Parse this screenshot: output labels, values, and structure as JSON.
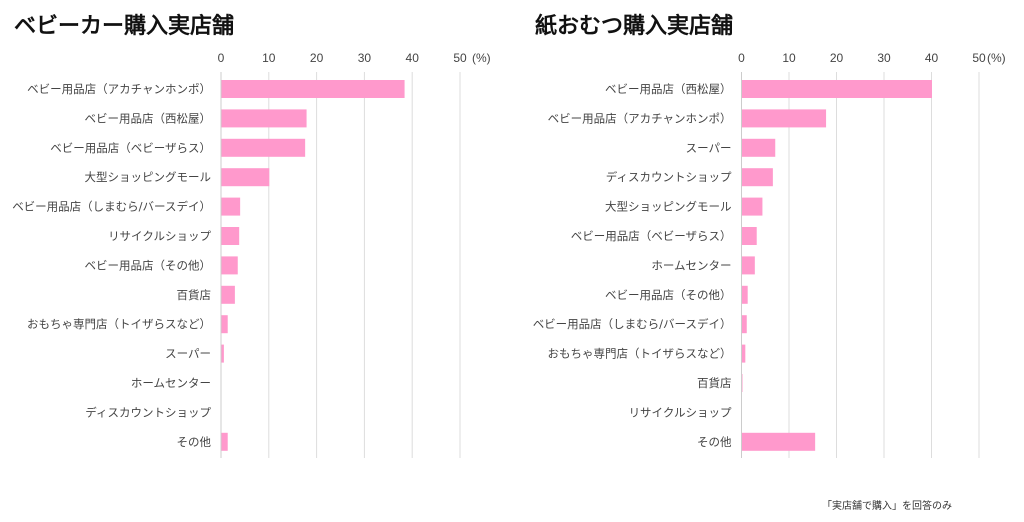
{
  "chart_data": [
    {
      "type": "bar",
      "orientation": "horizontal",
      "title": "ベビーカー購入実店舗",
      "xlabel": "",
      "unit_label": "(%)",
      "xlim": [
        0,
        50
      ],
      "ticks": [
        "0",
        "10",
        "20",
        "30",
        "40",
        "50"
      ],
      "grid": true,
      "categories": [
        "ベビー用品店（アカチャンホンポ）",
        "ベビー用品店（西松屋）",
        "ベビー用品店（ベビーザらス）",
        "大型ショッピングモール",
        "ベビー用品店（しまむら/バースデイ）",
        "リサイクルショップ",
        "ベビー用品店（その他）",
        "百貨店",
        "おもちゃ専門店（トイザらスなど）",
        "スーパー",
        "ホームセンター",
        "ディスカウントショップ",
        "その他"
      ],
      "values": [
        38.3,
        17.8,
        17.5,
        10.0,
        3.9,
        3.7,
        3.4,
        2.8,
        1.3,
        0.5,
        0,
        0,
        1.3
      ],
      "color": "#ff99cc"
    },
    {
      "type": "bar",
      "orientation": "horizontal",
      "title": "紙おむつ購入実店舗",
      "xlabel": "",
      "unit_label": "(%)",
      "xlim": [
        0,
        50
      ],
      "ticks": [
        "0",
        "10",
        "20",
        "30",
        "40",
        "50"
      ],
      "grid": true,
      "categories": [
        "ベビー用品店（西松屋）",
        "ベビー用品店（アカチャンホンポ）",
        "スーパー",
        "ディスカウントショップ",
        "大型ショッピングモール",
        "ベビー用品店（ベビーザらス）",
        "ホームセンター",
        "ベビー用品店（その他）",
        "ベビー用品店（しまむら/バースデイ）",
        "おもちゃ専門店（トイザらスなど）",
        "百貨店",
        "リサイクルショップ",
        "その他"
      ],
      "values": [
        40.0,
        17.7,
        7.0,
        6.5,
        4.3,
        3.1,
        2.7,
        1.2,
        1.0,
        0.7,
        0.1,
        0,
        15.4
      ],
      "color": "#ff99cc"
    }
  ],
  "footnote": "「実店舗で購入」を回答のみ"
}
